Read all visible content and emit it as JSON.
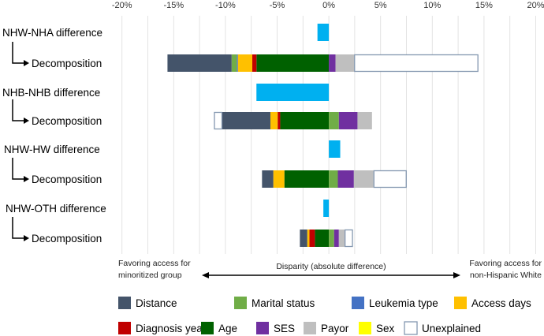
{
  "chart_data": {
    "type": "bar",
    "orientation": "horizontal-stacked",
    "xlim": [
      -20,
      20
    ],
    "xticks": [
      "-20%",
      "-15%",
      "-10%",
      "-5%",
      "0%",
      "5%",
      "10%",
      "15%",
      "20%"
    ],
    "xtick_values": [
      -20,
      -15,
      -10,
      -5,
      0,
      5,
      10,
      15,
      20
    ],
    "grid": true,
    "colors": {
      "Distance": "#44546A",
      "Marital status": "#70AD47",
      "Leukemia type": "#4472C4",
      "Access days": "#FFC000",
      "Diagnosis year": "#C00000",
      "Age": "#006100",
      "SES": "#7030A0",
      "Payor": "#BFBFBF",
      "Sex": "#FFFF00",
      "Unexplained": "#FFFFFF",
      "Difference": "#00B0F0"
    },
    "rows": [
      {
        "label": "NHW-NHA difference",
        "type": "difference",
        "value": -1.1
      },
      {
        "label": "Decomposition",
        "type": "decomposition",
        "negative": [
          [
            "Age",
            -7.0
          ],
          [
            "Diagnosis year",
            -0.4
          ],
          [
            "Access days",
            -1.4
          ],
          [
            "Leukemia type",
            -0.1
          ],
          [
            "Marital status",
            -0.5
          ],
          [
            "Distance",
            -6.2
          ]
        ],
        "positive": [
          [
            "SES",
            0.65
          ],
          [
            "Payor",
            1.8
          ],
          [
            "Unexplained",
            12.0
          ]
        ]
      },
      {
        "label": "NHB-NHB difference",
        "type": "difference",
        "value": -7.0
      },
      {
        "label": "Decomposition",
        "type": "decomposition",
        "negative": [
          [
            "Age",
            -4.7
          ],
          [
            "Diagnosis year",
            -0.25
          ],
          [
            "Access days",
            -0.7
          ],
          [
            "Distance",
            -4.65
          ],
          [
            "Unexplained",
            -0.8
          ]
        ],
        "positive": [
          [
            "Marital status",
            0.97
          ],
          [
            "SES",
            1.8
          ],
          [
            "Payor",
            1.4
          ]
        ]
      },
      {
        "label": "NHW-HW difference",
        "type": "difference",
        "value": 1.1
      },
      {
        "label": "Decomposition",
        "type": "decomposition",
        "negative": [
          [
            "Age",
            -4.3
          ],
          [
            "Access days",
            -1.07
          ],
          [
            "Distance",
            -1.09
          ]
        ],
        "positive": [
          [
            "Marital status",
            0.87
          ],
          [
            "SES",
            1.55
          ],
          [
            "Payor",
            1.9
          ],
          [
            "Unexplained",
            3.2
          ]
        ]
      },
      {
        "label": "NHW-OTH difference",
        "type": "difference",
        "value": -0.53
      },
      {
        "label": "Decomposition",
        "type": "decomposition",
        "negative": [
          [
            "Age",
            -1.35
          ],
          [
            "Diagnosis year",
            -0.53
          ],
          [
            "Access days",
            -0.21
          ],
          [
            "Distance",
            -0.71
          ]
        ],
        "positive": [
          [
            "Marital status",
            0.51
          ],
          [
            "SES",
            0.46
          ],
          [
            "Payor",
            0.56
          ],
          [
            "Unexplained",
            0.79
          ]
        ]
      }
    ],
    "annotations": {
      "left": [
        "Favoring access for",
        "minoritized group"
      ],
      "center": "Disparity (absolute difference)",
      "right": [
        "Favoring access for",
        "non-Hispanic White"
      ]
    },
    "legend": [
      "Distance",
      "Marital status",
      "Leukemia type",
      "Access days",
      "Diagnosis year",
      "Age",
      "SES",
      "Payor",
      "Sex",
      "Unexplained"
    ],
    "legend_placement": "bottom"
  }
}
